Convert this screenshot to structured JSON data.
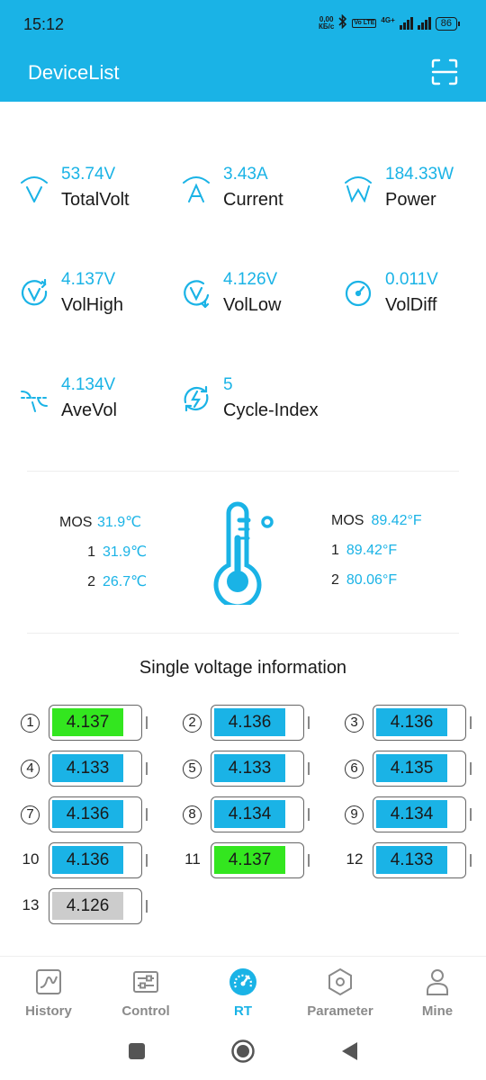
{
  "status_bar": {
    "time": "15:12",
    "net_speed_value": "0,00",
    "net_speed_unit": "КБ/с",
    "volte": "Vo LTE",
    "network": "4G+",
    "battery": "86"
  },
  "header": {
    "title": "DeviceList",
    "scan_icon": "scan-icon",
    "background_color": "#1ab3e6"
  },
  "metrics": [
    {
      "icon": "total-volt-icon",
      "value": "53.74V",
      "label": "TotalVolt"
    },
    {
      "icon": "current-icon",
      "value": "3.43A",
      "label": "Current"
    },
    {
      "icon": "power-icon",
      "value": "184.33W",
      "label": "Power"
    },
    {
      "icon": "vol-high-icon",
      "value": "4.137V",
      "label": "VolHigh"
    },
    {
      "icon": "vol-low-icon",
      "value": "4.126V",
      "label": "VolLow"
    },
    {
      "icon": "gauge-icon",
      "value": "0.011V",
      "label": "VolDiff"
    },
    {
      "icon": "ave-vol-icon",
      "value": "4.134V",
      "label": "AveVol"
    },
    {
      "icon": "cycle-icon",
      "value": "5",
      "label": "Cycle-Index"
    }
  ],
  "temperatures": {
    "celsius": [
      {
        "label": "MOS",
        "value": "31.9℃"
      },
      {
        "label": "1",
        "value": "31.9℃"
      },
      {
        "label": "2",
        "value": "26.7℃"
      }
    ],
    "fahrenheit": [
      {
        "label": "MOS",
        "value": "89.42°F"
      },
      {
        "label": "1",
        "value": "89.42°F"
      },
      {
        "label": "2",
        "value": "80.06°F"
      }
    ]
  },
  "cells": {
    "title": "Single voltage information",
    "items": [
      {
        "index": "1",
        "voltage": "4.137",
        "status": "high"
      },
      {
        "index": "2",
        "voltage": "4.136",
        "status": "normal"
      },
      {
        "index": "3",
        "voltage": "4.136",
        "status": "normal"
      },
      {
        "index": "4",
        "voltage": "4.133",
        "status": "normal"
      },
      {
        "index": "5",
        "voltage": "4.133",
        "status": "normal"
      },
      {
        "index": "6",
        "voltage": "4.135",
        "status": "normal"
      },
      {
        "index": "7",
        "voltage": "4.136",
        "status": "normal"
      },
      {
        "index": "8",
        "voltage": "4.134",
        "status": "normal"
      },
      {
        "index": "9",
        "voltage": "4.134",
        "status": "normal"
      },
      {
        "index": "10",
        "voltage": "4.136",
        "status": "normal"
      },
      {
        "index": "11",
        "voltage": "4.137",
        "status": "high"
      },
      {
        "index": "12",
        "voltage": "4.133",
        "status": "normal"
      },
      {
        "index": "13",
        "voltage": "4.126",
        "status": "low"
      }
    ],
    "colors": {
      "high": "#33e61f",
      "normal": "#1ab3e6",
      "low": "#cccccc"
    }
  },
  "tabs": [
    {
      "label": "History",
      "icon": "history-chart-icon",
      "active": false
    },
    {
      "label": "Control",
      "icon": "control-sliders-icon",
      "active": false
    },
    {
      "label": "RT",
      "icon": "realtime-gauge-icon",
      "active": true
    },
    {
      "label": "Parameter",
      "icon": "parameter-hex-icon",
      "active": false
    },
    {
      "label": "Mine",
      "icon": "user-icon",
      "active": false
    }
  ],
  "nav": {
    "recent_icon": "recent-apps-icon",
    "home_icon": "home-icon",
    "back_icon": "back-icon"
  }
}
